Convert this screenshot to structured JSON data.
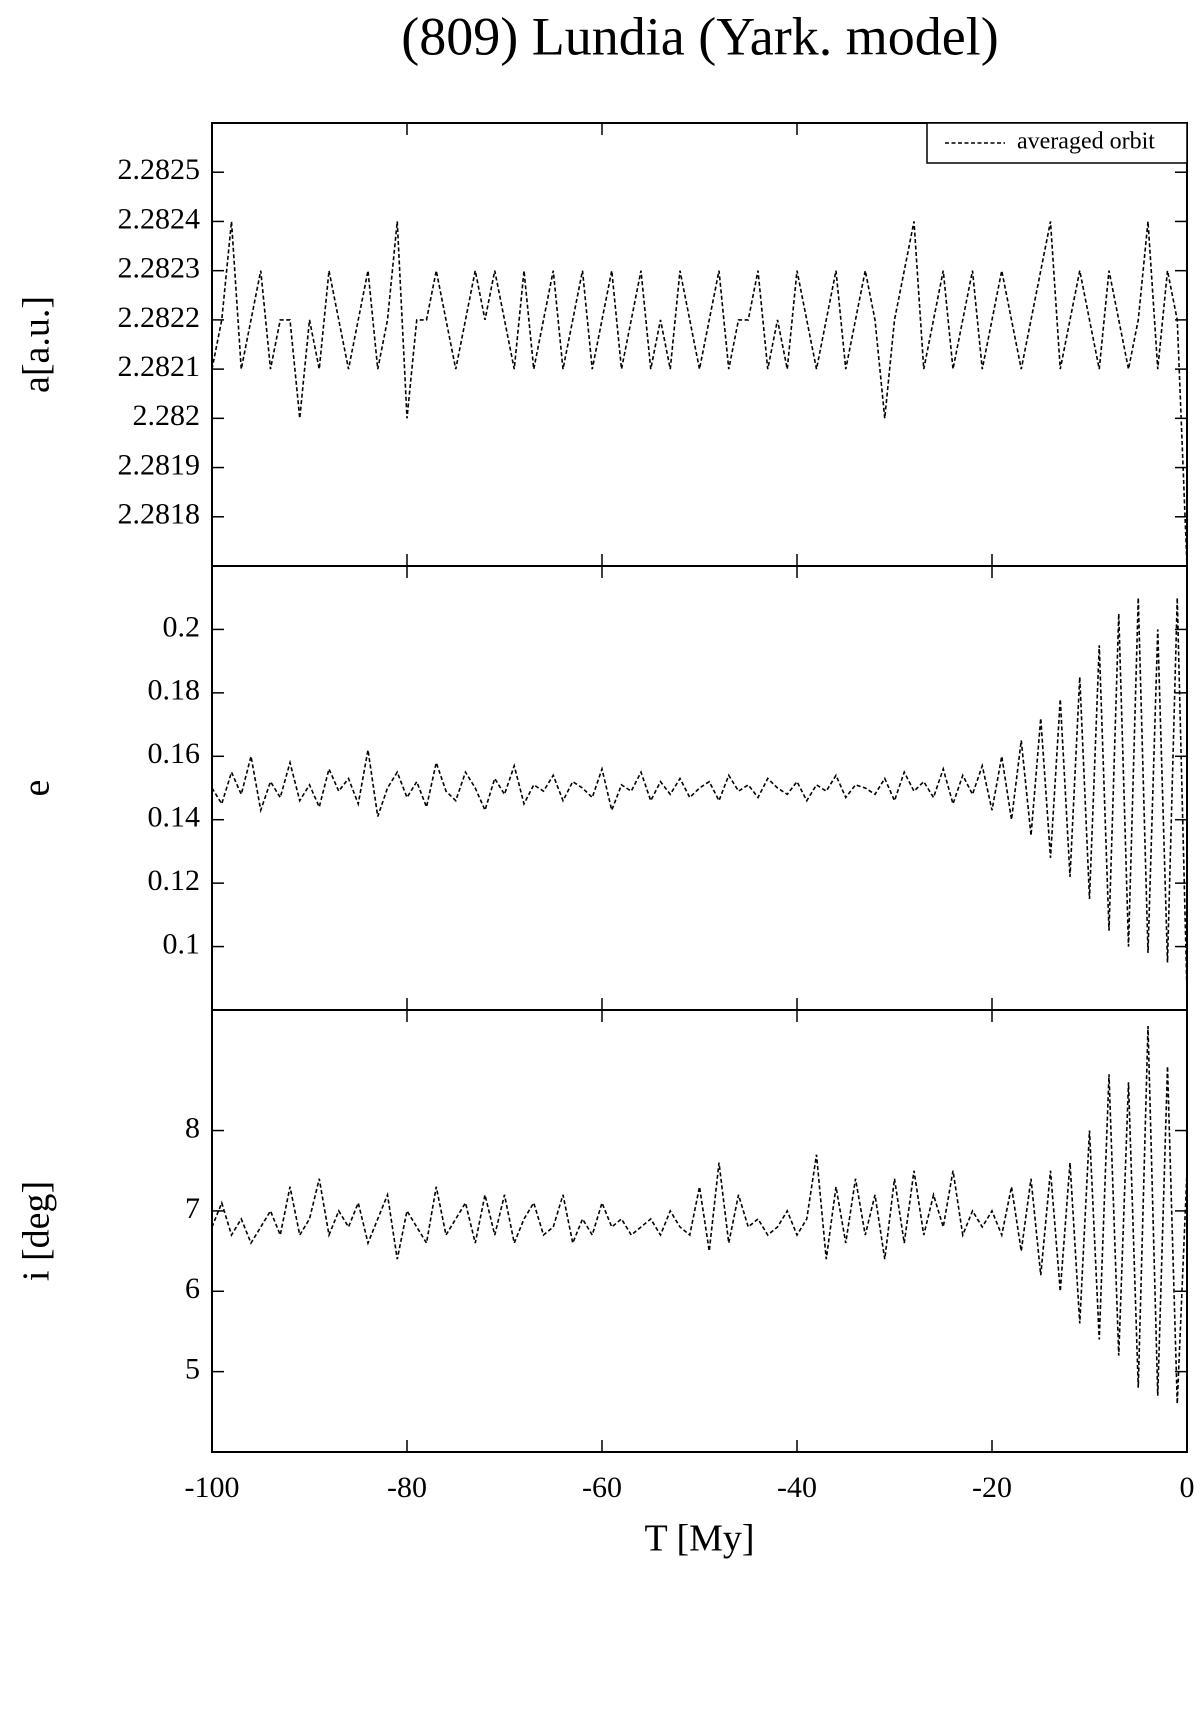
{
  "chart_data": [
    {
      "type": "line",
      "title": "(809) Lundia (Yark. model)",
      "ylabel": "a[a.u.]",
      "x": [
        -100,
        -99,
        -98,
        -97,
        -96,
        -95,
        -94,
        -93,
        -92,
        -91,
        -90,
        -89,
        -88,
        -87,
        -86,
        -85,
        -84,
        -83,
        -82,
        -81,
        -80,
        -79,
        -78,
        -77,
        -76,
        -75,
        -74,
        -73,
        -72,
        -71,
        -70,
        -69,
        -68,
        -67,
        -66,
        -65,
        -64,
        -63,
        -62,
        -61,
        -60,
        -59,
        -58,
        -57,
        -56,
        -55,
        -54,
        -53,
        -52,
        -51,
        -50,
        -49,
        -48,
        -47,
        -46,
        -45,
        -44,
        -43,
        -42,
        -41,
        -40,
        -39,
        -38,
        -37,
        -36,
        -35,
        -34,
        -33,
        -32,
        -31,
        -30,
        -29,
        -28,
        -27,
        -26,
        -25,
        -24,
        -23,
        -22,
        -21,
        -20,
        -19,
        -18,
        -17,
        -16,
        -15,
        -14,
        -13,
        -12,
        -11,
        -10,
        -9,
        -8,
        -7,
        -6,
        -5,
        -4,
        -3,
        -2,
        -1,
        0
      ],
      "series": [
        {
          "name": "averaged orbit",
          "color": "#000000",
          "values": [
            2.2821,
            2.2822,
            2.2824,
            2.2821,
            2.2822,
            2.2823,
            2.2821,
            2.2822,
            2.2822,
            2.282,
            2.2822,
            2.2821,
            2.2823,
            2.2822,
            2.2821,
            2.2822,
            2.2823,
            2.2821,
            2.2822,
            2.2824,
            2.282,
            2.2822,
            2.2822,
            2.2823,
            2.2822,
            2.2821,
            2.2822,
            2.2823,
            2.2822,
            2.2823,
            2.2822,
            2.2821,
            2.2823,
            2.2821,
            2.2822,
            2.2823,
            2.2821,
            2.2822,
            2.2823,
            2.2821,
            2.2822,
            2.2823,
            2.2821,
            2.2822,
            2.2823,
            2.2821,
            2.2822,
            2.2821,
            2.2823,
            2.2822,
            2.2821,
            2.2822,
            2.2823,
            2.2821,
            2.2822,
            2.2822,
            2.2823,
            2.2821,
            2.2822,
            2.2821,
            2.2823,
            2.2822,
            2.2821,
            2.2822,
            2.2823,
            2.2821,
            2.2822,
            2.2823,
            2.2822,
            2.282,
            2.2822,
            2.2823,
            2.2824,
            2.2821,
            2.2822,
            2.2823,
            2.2821,
            2.2822,
            2.2823,
            2.2821,
            2.2822,
            2.2823,
            2.2822,
            2.2821,
            2.2822,
            2.2823,
            2.2824,
            2.2821,
            2.2822,
            2.2823,
            2.2822,
            2.2821,
            2.2823,
            2.2822,
            2.2821,
            2.2822,
            2.2824,
            2.2821,
            2.2823,
            2.2822,
            2.2817
          ]
        }
      ],
      "xlim": [
        -100,
        0
      ],
      "xticks": [
        -100,
        -80,
        -60,
        -40,
        -20,
        0
      ],
      "ylim": [
        2.2817,
        2.2826
      ],
      "yticks": [
        2.2818,
        2.2819,
        2.282,
        2.2821,
        2.2822,
        2.2823,
        2.2824,
        2.2825
      ],
      "legend": "upper right"
    },
    {
      "type": "line",
      "ylabel": "e",
      "x": [
        -100,
        -99,
        -98,
        -97,
        -96,
        -95,
        -94,
        -93,
        -92,
        -91,
        -90,
        -89,
        -88,
        -87,
        -86,
        -85,
        -84,
        -83,
        -82,
        -81,
        -80,
        -79,
        -78,
        -77,
        -76,
        -75,
        -74,
        -73,
        -72,
        -71,
        -70,
        -69,
        -68,
        -67,
        -66,
        -65,
        -64,
        -63,
        -62,
        -61,
        -60,
        -59,
        -58,
        -57,
        -56,
        -55,
        -54,
        -53,
        -52,
        -51,
        -50,
        -49,
        -48,
        -47,
        -46,
        -45,
        -44,
        -43,
        -42,
        -41,
        -40,
        -39,
        -38,
        -37,
        -36,
        -35,
        -34,
        -33,
        -32,
        -31,
        -30,
        -29,
        -28,
        -27,
        -26,
        -25,
        -24,
        -23,
        -22,
        -21,
        -20,
        -19,
        -18,
        -17,
        -16,
        -15,
        -14,
        -13,
        -12,
        -11,
        -10,
        -9,
        -8,
        -7,
        -6,
        -5,
        -4,
        -3,
        -2,
        -1,
        0
      ],
      "series": [
        {
          "color": "#000000",
          "values": [
            0.15,
            0.145,
            0.155,
            0.148,
            0.16,
            0.143,
            0.152,
            0.147,
            0.158,
            0.146,
            0.151,
            0.144,
            0.156,
            0.149,
            0.153,
            0.145,
            0.162,
            0.141,
            0.15,
            0.155,
            0.147,
            0.152,
            0.144,
            0.158,
            0.149,
            0.146,
            0.155,
            0.15,
            0.143,
            0.153,
            0.148,
            0.157,
            0.145,
            0.151,
            0.149,
            0.154,
            0.146,
            0.152,
            0.15,
            0.147,
            0.156,
            0.143,
            0.151,
            0.149,
            0.155,
            0.146,
            0.152,
            0.148,
            0.153,
            0.147,
            0.15,
            0.152,
            0.146,
            0.154,
            0.149,
            0.151,
            0.147,
            0.153,
            0.15,
            0.148,
            0.152,
            0.146,
            0.151,
            0.149,
            0.154,
            0.147,
            0.151,
            0.15,
            0.148,
            0.153,
            0.146,
            0.155,
            0.149,
            0.152,
            0.147,
            0.156,
            0.145,
            0.154,
            0.148,
            0.157,
            0.143,
            0.16,
            0.14,
            0.165,
            0.135,
            0.172,
            0.128,
            0.178,
            0.122,
            0.185,
            0.115,
            0.195,
            0.105,
            0.205,
            0.1,
            0.21,
            0.098,
            0.2,
            0.095,
            0.21,
            0.085
          ]
        }
      ],
      "xlim": [
        -100,
        0
      ],
      "xticks": [
        -100,
        -80,
        -60,
        -40,
        -20,
        0
      ],
      "ylim": [
        0.08,
        0.22
      ],
      "yticks": [
        0.1,
        0.12,
        0.14,
        0.16,
        0.18,
        0.2
      ]
    },
    {
      "type": "line",
      "ylabel": "i [deg]",
      "xlabel": "T [My]",
      "x": [
        -100,
        -99,
        -98,
        -97,
        -96,
        -95,
        -94,
        -93,
        -92,
        -91,
        -90,
        -89,
        -88,
        -87,
        -86,
        -85,
        -84,
        -83,
        -82,
        -81,
        -80,
        -79,
        -78,
        -77,
        -76,
        -75,
        -74,
        -73,
        -72,
        -71,
        -70,
        -69,
        -68,
        -67,
        -66,
        -65,
        -64,
        -63,
        -62,
        -61,
        -60,
        -59,
        -58,
        -57,
        -56,
        -55,
        -54,
        -53,
        -52,
        -51,
        -50,
        -49,
        -48,
        -47,
        -46,
        -45,
        -44,
        -43,
        -42,
        -41,
        -40,
        -39,
        -38,
        -37,
        -36,
        -35,
        -34,
        -33,
        -32,
        -31,
        -30,
        -29,
        -28,
        -27,
        -26,
        -25,
        -24,
        -23,
        -22,
        -21,
        -20,
        -19,
        -18,
        -17,
        -16,
        -15,
        -14,
        -13,
        -12,
        -11,
        -10,
        -9,
        -8,
        -7,
        -6,
        -5,
        -4,
        -3,
        -2,
        -1,
        0
      ],
      "series": [
        {
          "color": "#000000",
          "values": [
            6.8,
            7.1,
            6.7,
            6.9,
            6.6,
            6.8,
            7.0,
            6.7,
            7.3,
            6.7,
            6.9,
            7.4,
            6.7,
            7.0,
            6.8,
            7.1,
            6.6,
            6.9,
            7.2,
            6.4,
            7.0,
            6.8,
            6.6,
            7.3,
            6.7,
            6.9,
            7.1,
            6.6,
            7.2,
            6.7,
            7.2,
            6.6,
            6.9,
            7.1,
            6.7,
            6.8,
            7.2,
            6.6,
            6.9,
            6.7,
            7.1,
            6.8,
            6.9,
            6.7,
            6.8,
            6.9,
            6.7,
            7.0,
            6.8,
            6.7,
            7.3,
            6.5,
            7.6,
            6.6,
            7.2,
            6.8,
            6.9,
            6.7,
            6.8,
            7.0,
            6.7,
            6.9,
            7.7,
            6.4,
            7.3,
            6.6,
            7.4,
            6.7,
            7.2,
            6.4,
            7.4,
            6.6,
            7.5,
            6.7,
            7.2,
            6.8,
            7.5,
            6.7,
            7.0,
            6.8,
            7.0,
            6.7,
            7.3,
            6.5,
            7.4,
            6.2,
            7.5,
            6.0,
            7.6,
            5.6,
            8.0,
            5.4,
            8.7,
            5.2,
            8.6,
            4.8,
            9.3,
            4.7,
            8.8,
            4.6,
            7.5
          ]
        }
      ],
      "xlim": [
        -100,
        0
      ],
      "xticks": [
        -100,
        -80,
        -60,
        -40,
        -20,
        0
      ],
      "ylim": [
        4,
        9.5
      ],
      "yticks": [
        5,
        6,
        7,
        8
      ]
    }
  ]
}
